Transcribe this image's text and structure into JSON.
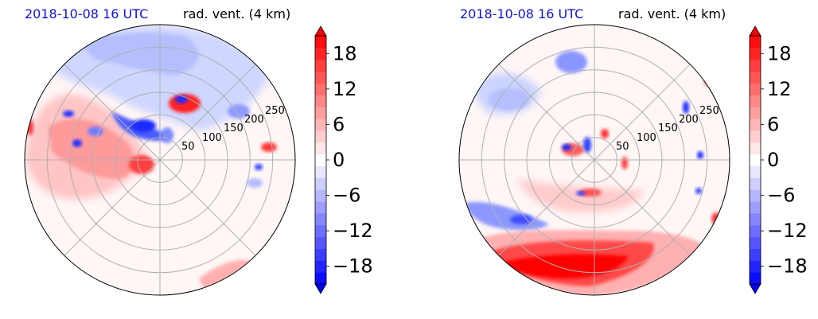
{
  "panels": [
    {
      "time_label": "2018-10-08 16 UTC",
      "var_label": "rad. vent. (4 km)",
      "ring_labels": [
        "50",
        "100",
        "150",
        "200",
        "250"
      ]
    },
    {
      "time_label": "2018-10-08 16 UTC",
      "var_label": "rad. vent. (4 km)",
      "ring_labels": [
        "50",
        "100",
        "150",
        "200",
        "250"
      ]
    }
  ],
  "colorbar": {
    "ticks": [
      "18",
      "12",
      "6",
      "0",
      "−6",
      "−12",
      "−18"
    ],
    "min": -21,
    "max": 21,
    "colormap": "bwr",
    "colors": {
      "negative": "#0000ff",
      "zero": "#ffffff",
      "positive": "#ff0000"
    }
  },
  "chart_data": [
    {
      "type": "heatmap",
      "projection": "polar",
      "variable": "rad. vent. (4 km)",
      "valid_time": "2018-10-08 16 UTC",
      "radial_ticks": [
        50,
        100,
        150,
        200,
        250
      ],
      "color_range": [
        -21,
        21
      ],
      "colorbar_ticks": [
        -18,
        -12,
        -6,
        0,
        6,
        12,
        18
      ],
      "grid": true
    },
    {
      "type": "heatmap",
      "projection": "polar",
      "variable": "rad. vent. (4 km)",
      "valid_time": "2018-10-08 16 UTC",
      "radial_ticks": [
        50,
        100,
        150,
        200,
        250
      ],
      "color_range": [
        -21,
        21
      ],
      "colorbar_ticks": [
        -18,
        -12,
        -6,
        0,
        6,
        12,
        18
      ],
      "grid": true
    }
  ]
}
